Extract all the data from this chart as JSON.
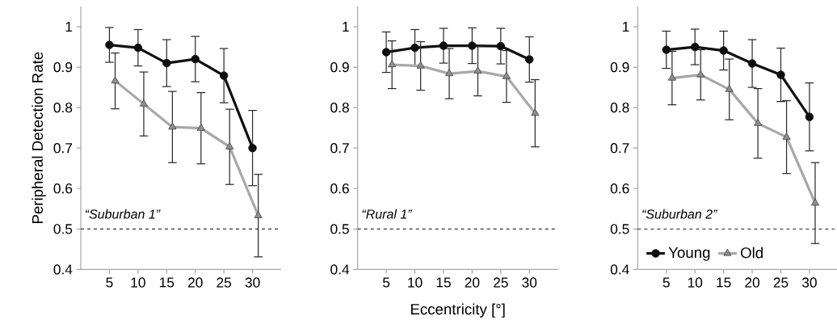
{
  "chart_data": [
    {
      "type": "line",
      "ylabel": "Peripheral Detection Rate",
      "xlim": [
        0,
        35
      ],
      "xticks": [
        5,
        10,
        15,
        20,
        25,
        30
      ],
      "ylim": [
        0.4,
        1.05
      ],
      "yticks": [
        0.4,
        0.5,
        0.6,
        0.7,
        0.8,
        0.9,
        1
      ],
      "ref_lines": [
        {
          "axis": "y",
          "value": 0.5,
          "line_style": "dashed"
        }
      ],
      "annotations": [
        "“Suburban 1”"
      ],
      "series": [
        {
          "color": "#111111",
          "marker": "circle",
          "x": [
            5,
            10,
            15,
            20,
            25,
            30
          ],
          "values": [
            0.955,
            0.948,
            0.91,
            0.92,
            0.879,
            0.7
          ],
          "errors": [
            0.043,
            0.045,
            0.058,
            0.056,
            0.067,
            0.093
          ]
        },
        {
          "color": "#a8a8a8",
          "marker": "triangle",
          "x": [
            6,
            11,
            16,
            21,
            26,
            31
          ],
          "values": [
            0.866,
            0.809,
            0.752,
            0.749,
            0.703,
            0.533
          ],
          "errors": [
            0.069,
            0.079,
            0.088,
            0.088,
            0.093,
            0.102
          ]
        }
      ]
    },
    {
      "type": "line",
      "xlabel": "Eccentricity [°]",
      "xlim": [
        0,
        35
      ],
      "xticks": [
        5,
        10,
        15,
        20,
        25,
        30
      ],
      "ylim": [
        0.4,
        1.05
      ],
      "yticks": [
        0.4,
        0.5,
        0.6,
        0.7,
        0.8,
        0.9,
        1
      ],
      "ref_lines": [
        {
          "axis": "y",
          "value": 0.5,
          "line_style": "dashed"
        }
      ],
      "annotations": [
        "“Rural 1”"
      ],
      "series": [
        {
          "color": "#111111",
          "marker": "circle",
          "x": [
            5,
            10,
            15,
            20,
            25,
            30
          ],
          "values": [
            0.937,
            0.948,
            0.953,
            0.953,
            0.952,
            0.919
          ],
          "errors": [
            0.05,
            0.045,
            0.043,
            0.044,
            0.044,
            0.056
          ]
        },
        {
          "color": "#a8a8a8",
          "marker": "triangle",
          "x": [
            6,
            11,
            16,
            21,
            26,
            31
          ],
          "values": [
            0.906,
            0.903,
            0.884,
            0.89,
            0.877,
            0.786
          ],
          "errors": [
            0.059,
            0.06,
            0.062,
            0.061,
            0.064,
            0.083
          ]
        }
      ]
    },
    {
      "type": "line",
      "xlim": [
        0,
        35
      ],
      "xticks": [
        5,
        10,
        15,
        20,
        25,
        30
      ],
      "ylim": [
        0.4,
        1.05
      ],
      "yticks": [
        0.4,
        0.5,
        0.6,
        0.7,
        0.8,
        0.9,
        1
      ],
      "ref_lines": [
        {
          "axis": "y",
          "value": 0.5,
          "line_style": "dashed"
        }
      ],
      "annotations": [
        "“Suburban 2”"
      ],
      "legend": "bottom left",
      "series": [
        {
          "name": "Young",
          "color": "#111111",
          "marker": "circle",
          "x": [
            5,
            10,
            15,
            20,
            25,
            30
          ],
          "values": [
            0.943,
            0.95,
            0.941,
            0.909,
            0.881,
            0.777
          ],
          "errors": [
            0.046,
            0.044,
            0.048,
            0.059,
            0.066,
            0.084
          ]
        },
        {
          "name": "Old",
          "color": "#a8a8a8",
          "marker": "triangle",
          "x": [
            6,
            11,
            16,
            21,
            26,
            31
          ],
          "values": [
            0.873,
            0.881,
            0.845,
            0.761,
            0.727,
            0.564
          ],
          "errors": [
            0.066,
            0.062,
            0.075,
            0.086,
            0.09,
            0.1
          ]
        }
      ]
    }
  ]
}
